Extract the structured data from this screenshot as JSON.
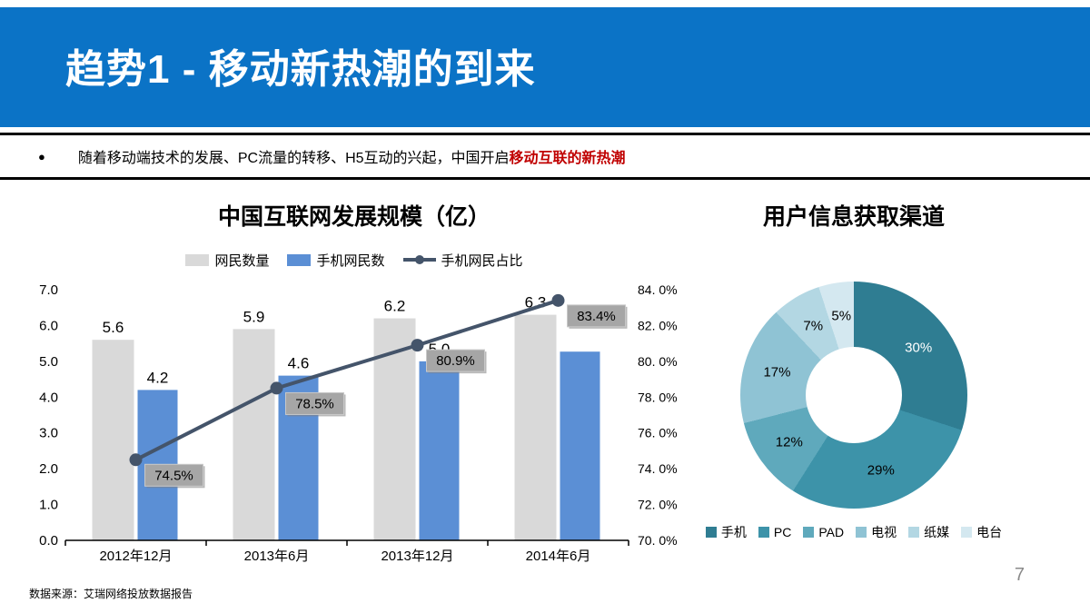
{
  "header": {
    "title": "趋势1 - 移动新热潮的到来",
    "bg_color": "#0b73c6"
  },
  "bullet": {
    "marker": "●",
    "text_normal": "随着移动端技术的发展、PC流量的转移、H5互动的兴起，中国开启",
    "text_highlight": "移动互联的新热潮",
    "highlight_color": "#c00000"
  },
  "footer": {
    "source": "数据来源：艾瑞网络投放数据报告",
    "page_number": "7"
  },
  "chart_data": [
    {
      "type": "bar+line",
      "title": "中国互联网发展规模（亿）",
      "categories": [
        "2012年12月",
        "2013年6月",
        "2013年12月",
        "2014年6月"
      ],
      "series": [
        {
          "name": "网民数量",
          "type": "bar",
          "color": "#d9d9d9",
          "values": [
            5.6,
            5.9,
            6.2,
            6.3
          ],
          "labels": [
            "5.6",
            "5.9",
            "6.2",
            "6.3"
          ]
        },
        {
          "name": "手机网民数",
          "type": "bar",
          "color": "#5b8fd5",
          "values": [
            4.2,
            4.6,
            5.0,
            5.27
          ],
          "labels": [
            "4.2",
            "4.6",
            "5.0",
            ""
          ]
        },
        {
          "name": "手机网民占比",
          "type": "line",
          "color": "#44546a",
          "label_bg": "#a6a6a6",
          "values": [
            74.5,
            78.5,
            80.9,
            83.4
          ],
          "labels": [
            "74.5%",
            "78.5%",
            "80.9%",
            "83.4%"
          ]
        }
      ],
      "left_axis": {
        "min": 0,
        "max": 7,
        "ticks": [
          "7.0",
          "6.0",
          "5.0",
          "4.0",
          "3.0",
          "2.0",
          "1.0",
          "0.0"
        ]
      },
      "right_axis": {
        "min": 70,
        "max": 84,
        "ticks": [
          "84. 0%",
          "82. 0%",
          "80. 0%",
          "78. 0%",
          "76. 0%",
          "74. 0%",
          "72. 0%",
          "70. 0%"
        ]
      },
      "legend_position": "top",
      "grid": false
    },
    {
      "type": "pie",
      "title": "用户信息获取渠道",
      "donut": true,
      "legend_position": "bottom",
      "slices": [
        {
          "label": "手机",
          "value": 30,
          "pct": "30%",
          "color": "#2f7d92",
          "text_color": "#ffffff"
        },
        {
          "label": "PC",
          "value": 29,
          "pct": "29%",
          "color": "#3d93a9",
          "text_color": "#000000"
        },
        {
          "label": "PAD",
          "value": 12,
          "pct": "12%",
          "color": "#5fa9bc",
          "text_color": "#000000"
        },
        {
          "label": "电视",
          "value": 17,
          "pct": "17%",
          "color": "#8fc3d4",
          "text_color": "#000000"
        },
        {
          "label": "纸媒",
          "value": 7,
          "pct": "7%",
          "color": "#b3d7e3",
          "text_color": "#000000"
        },
        {
          "label": "电台",
          "value": 5,
          "pct": "5%",
          "color": "#d4e8f0",
          "text_color": "#000000"
        }
      ]
    }
  ]
}
